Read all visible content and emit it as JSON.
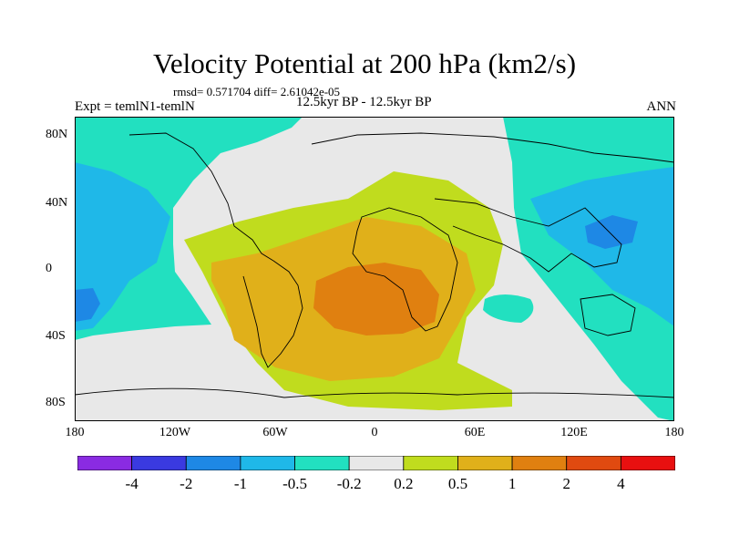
{
  "title": "Velocity Potential at 200 hPa (km2/s)",
  "stats_line": "rmsd= 0.571704 diff= 2.61042e-05",
  "experiment_label": "Expt = temlN1-temlN",
  "period_label": "12.5kyr BP - 12.5kyr BP",
  "season_label": "ANN",
  "latitude_ticks": [
    "80N",
    "40N",
    "0",
    "40S",
    "80S"
  ],
  "longitude_ticks": [
    "180",
    "120W",
    "60W",
    "0",
    "60E",
    "120E",
    "180"
  ],
  "colorbar": {
    "labels": [
      "-4",
      "-2",
      "-1",
      "-0.5",
      "-0.2",
      "0.2",
      "0.5",
      "1",
      "2",
      "4"
    ],
    "colors": [
      "#8a2be2",
      "#3a3ae0",
      "#1e88e5",
      "#1fb8e8",
      "#22e0c0",
      "#e8e8e8",
      "#c0dc1e",
      "#e0b01a",
      "#e08010",
      "#e04a10",
      "#e81010"
    ]
  },
  "map_colors": {
    "neutral": "#e8e8e8",
    "teal": "#22e0c0",
    "light_blue": "#1fb8e8",
    "blue": "#1e88e5",
    "yellow_green": "#c0dc1e",
    "orange_yellow": "#e0b01a",
    "orange": "#e08010"
  }
}
